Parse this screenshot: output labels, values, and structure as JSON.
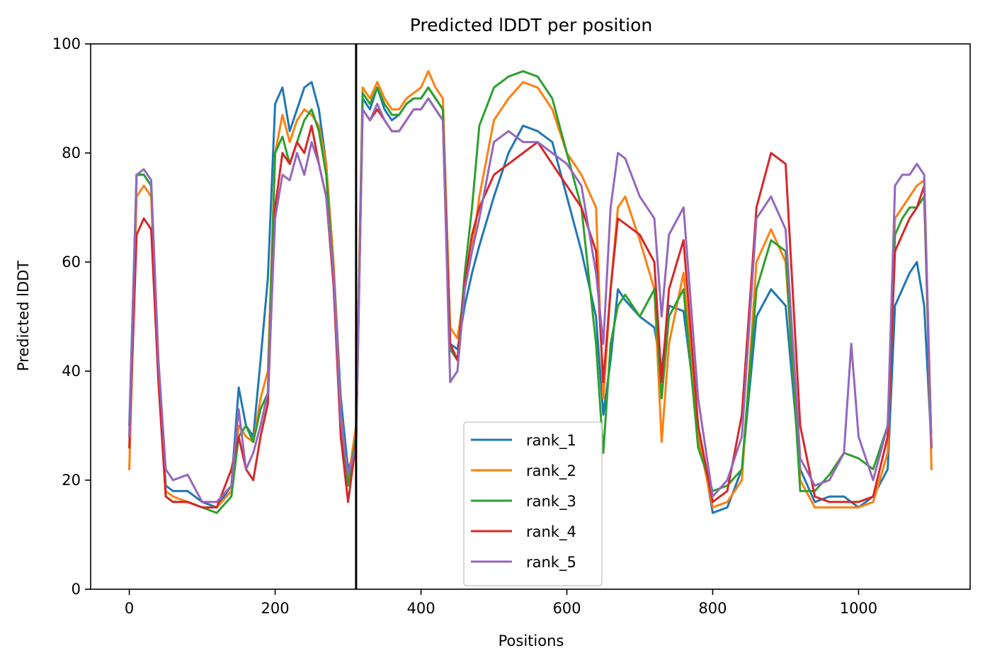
{
  "chart_data": {
    "type": "line",
    "title": "Predicted lDDT per position",
    "xlabel": "Positions",
    "ylabel": "Predicted lDDT",
    "xlim": [
      -53,
      1153
    ],
    "ylim": [
      0,
      100
    ],
    "xticks": [
      0,
      200,
      400,
      600,
      800,
      1000
    ],
    "yticks": [
      0,
      20,
      40,
      60,
      80,
      100
    ],
    "grid": false,
    "legend_position": "bottom-center",
    "vline": 311,
    "series": [
      {
        "name": "rank_1",
        "color": "#1f77b4",
        "x": [
          0,
          10,
          20,
          30,
          40,
          50,
          60,
          80,
          100,
          120,
          140,
          150,
          160,
          170,
          180,
          190,
          200,
          210,
          220,
          230,
          240,
          250,
          260,
          270,
          280,
          290,
          300,
          311,
          320,
          330,
          340,
          350,
          360,
          370,
          380,
          390,
          400,
          410,
          420,
          430,
          440,
          450,
          460,
          470,
          480,
          500,
          520,
          540,
          560,
          580,
          600,
          620,
          640,
          650,
          660,
          670,
          680,
          700,
          720,
          730,
          740,
          760,
          780,
          800,
          820,
          840,
          860,
          880,
          900,
          920,
          940,
          960,
          980,
          1000,
          1020,
          1040,
          1050,
          1060,
          1070,
          1080,
          1090,
          1100
        ],
        "y": [
          30,
          76,
          76,
          74,
          40,
          19,
          18,
          18,
          16,
          15,
          19,
          37,
          30,
          28,
          42,
          57,
          89,
          92,
          84,
          88,
          92,
          93,
          88,
          78,
          60,
          35,
          22,
          26,
          90,
          88,
          92,
          88,
          86,
          87,
          89,
          90,
          90,
          92,
          90,
          88,
          45,
          44,
          52,
          58,
          63,
          72,
          80,
          85,
          84,
          82,
          72,
          62,
          50,
          32,
          42,
          55,
          53,
          50,
          48,
          40,
          52,
          51,
          30,
          14,
          15,
          22,
          50,
          55,
          52,
          22,
          16,
          17,
          17,
          15,
          17,
          22,
          52,
          55,
          58,
          60,
          52,
          26
        ]
      },
      {
        "name": "rank_2",
        "color": "#ff7f0e",
        "x": [
          0,
          10,
          20,
          30,
          40,
          50,
          60,
          80,
          100,
          120,
          140,
          150,
          160,
          170,
          180,
          190,
          200,
          210,
          220,
          230,
          240,
          250,
          260,
          270,
          280,
          290,
          300,
          311,
          320,
          330,
          340,
          350,
          360,
          370,
          380,
          390,
          400,
          410,
          420,
          430,
          440,
          450,
          460,
          470,
          480,
          500,
          520,
          540,
          560,
          580,
          600,
          620,
          640,
          650,
          660,
          670,
          680,
          700,
          720,
          730,
          740,
          760,
          780,
          800,
          820,
          840,
          860,
          880,
          900,
          920,
          940,
          960,
          980,
          1000,
          1020,
          1040,
          1050,
          1060,
          1070,
          1080,
          1090,
          1100
        ],
        "y": [
          22,
          72,
          74,
          72,
          38,
          18,
          17,
          16,
          15,
          15,
          18,
          30,
          28,
          27,
          35,
          40,
          80,
          87,
          82,
          86,
          88,
          87,
          85,
          78,
          60,
          32,
          20,
          30,
          92,
          90,
          93,
          90,
          88,
          88,
          90,
          91,
          92,
          95,
          92,
          90,
          48,
          46,
          55,
          62,
          72,
          86,
          90,
          93,
          92,
          88,
          80,
          76,
          70,
          35,
          55,
          70,
          72,
          64,
          55,
          27,
          45,
          58,
          28,
          15,
          16,
          20,
          60,
          66,
          60,
          20,
          15,
          15,
          15,
          15,
          16,
          25,
          68,
          70,
          72,
          74,
          75,
          22
        ]
      },
      {
        "name": "rank_3",
        "color": "#2ca02c",
        "x": [
          0,
          10,
          20,
          30,
          40,
          50,
          60,
          80,
          100,
          120,
          140,
          150,
          160,
          170,
          180,
          190,
          200,
          210,
          220,
          230,
          240,
          250,
          260,
          270,
          280,
          290,
          300,
          311,
          320,
          330,
          340,
          350,
          360,
          370,
          380,
          390,
          400,
          410,
          420,
          430,
          440,
          450,
          460,
          470,
          480,
          500,
          520,
          540,
          560,
          580,
          600,
          620,
          640,
          650,
          660,
          670,
          680,
          700,
          720,
          730,
          740,
          760,
          780,
          800,
          820,
          840,
          860,
          880,
          900,
          920,
          940,
          960,
          980,
          1000,
          1020,
          1040,
          1050,
          1060,
          1070,
          1080,
          1090,
          1100
        ],
        "y": [
          28,
          76,
          76,
          74,
          40,
          17,
          16,
          16,
          15,
          14,
          17,
          28,
          30,
          27,
          33,
          36,
          80,
          83,
          78,
          82,
          86,
          88,
          84,
          76,
          58,
          30,
          19,
          28,
          91,
          89,
          92,
          89,
          87,
          87,
          89,
          90,
          90,
          92,
          90,
          88,
          44,
          42,
          58,
          70,
          85,
          92,
          94,
          95,
          94,
          90,
          80,
          70,
          45,
          25,
          45,
          52,
          54,
          50,
          55,
          35,
          50,
          55,
          26,
          18,
          19,
          22,
          55,
          64,
          62,
          18,
          18,
          21,
          25,
          24,
          22,
          30,
          65,
          68,
          70,
          70,
          72,
          26
        ]
      },
      {
        "name": "rank_4",
        "color": "#d62728",
        "x": [
          0,
          10,
          20,
          30,
          40,
          50,
          60,
          80,
          100,
          120,
          140,
          150,
          160,
          170,
          180,
          190,
          200,
          210,
          220,
          230,
          240,
          250,
          260,
          270,
          280,
          290,
          300,
          311,
          320,
          330,
          340,
          350,
          360,
          370,
          380,
          390,
          400,
          410,
          420,
          430,
          440,
          450,
          460,
          470,
          480,
          500,
          520,
          540,
          560,
          580,
          600,
          620,
          640,
          650,
          660,
          670,
          680,
          700,
          720,
          730,
          740,
          760,
          780,
          800,
          820,
          840,
          860,
          880,
          900,
          920,
          940,
          960,
          980,
          1000,
          1020,
          1040,
          1050,
          1060,
          1070,
          1080,
          1090,
          1100
        ],
        "y": [
          26,
          65,
          68,
          66,
          38,
          17,
          16,
          16,
          15,
          15,
          22,
          28,
          22,
          20,
          28,
          34,
          70,
          80,
          78,
          82,
          80,
          85,
          78,
          72,
          56,
          28,
          16,
          27,
          88,
          86,
          88,
          86,
          84,
          84,
          86,
          88,
          88,
          90,
          88,
          86,
          45,
          42,
          56,
          65,
          70,
          76,
          78,
          80,
          82,
          78,
          74,
          70,
          62,
          38,
          55,
          68,
          67,
          65,
          60,
          38,
          55,
          64,
          30,
          16,
          18,
          32,
          70,
          80,
          78,
          30,
          17,
          16,
          16,
          16,
          17,
          28,
          62,
          65,
          68,
          70,
          74,
          26
        ]
      },
      {
        "name": "rank_5",
        "color": "#9467bd",
        "x": [
          0,
          10,
          20,
          30,
          40,
          50,
          60,
          80,
          100,
          120,
          140,
          150,
          160,
          170,
          180,
          190,
          200,
          210,
          220,
          230,
          240,
          250,
          260,
          270,
          280,
          290,
          300,
          311,
          320,
          330,
          340,
          350,
          360,
          370,
          380,
          390,
          400,
          410,
          420,
          430,
          440,
          450,
          460,
          470,
          480,
          500,
          520,
          540,
          560,
          580,
          600,
          620,
          640,
          650,
          660,
          670,
          680,
          700,
          720,
          730,
          740,
          760,
          780,
          800,
          820,
          840,
          860,
          880,
          900,
          920,
          940,
          960,
          980,
          990,
          1000,
          1020,
          1040,
          1050,
          1060,
          1070,
          1080,
          1090,
          1100
        ],
        "y": [
          28,
          76,
          77,
          75,
          42,
          22,
          20,
          21,
          16,
          16,
          19,
          33,
          22,
          25,
          30,
          36,
          68,
          76,
          75,
          80,
          76,
          82,
          78,
          72,
          58,
          31,
          21,
          26,
          88,
          86,
          89,
          86,
          84,
          84,
          86,
          88,
          88,
          90,
          88,
          86,
          38,
          40,
          55,
          62,
          68,
          82,
          84,
          82,
          82,
          80,
          78,
          74,
          58,
          45,
          70,
          80,
          79,
          72,
          68,
          50,
          65,
          70,
          35,
          17,
          20,
          28,
          68,
          72,
          66,
          24,
          19,
          20,
          25,
          45,
          28,
          20,
          30,
          74,
          76,
          76,
          78,
          76,
          26
        ]
      }
    ]
  }
}
